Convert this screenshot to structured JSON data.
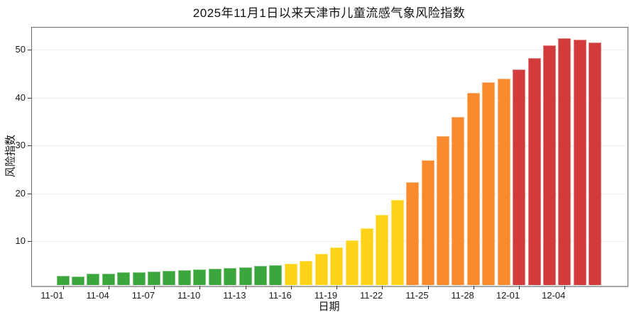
{
  "chart_data": {
    "type": "bar",
    "title": "2025年11月1日以来天津市儿童流感气象风险指数",
    "xlabel": "日期",
    "ylabel": "风险指数",
    "legend": "none",
    "grid": "horizontal-dotted",
    "background": "#ffffff",
    "ylim": [
      0.9,
      54.7
    ],
    "y_ticks": [
      10,
      20,
      30,
      40,
      50
    ],
    "x_ticks": [
      "11-01",
      "11-04",
      "11-07",
      "11-10",
      "11-13",
      "11-16",
      "11-19",
      "11-22",
      "11-25",
      "11-28",
      "12-01",
      "12-04"
    ],
    "categories": [
      "11-01",
      "11-02",
      "11-03",
      "11-04",
      "11-05",
      "11-06",
      "11-07",
      "11-08",
      "11-09",
      "11-10",
      "11-11",
      "11-12",
      "11-13",
      "11-14",
      "11-15",
      "11-16",
      "11-17",
      "11-18",
      "11-19",
      "11-20",
      "11-21",
      "11-22",
      "11-23",
      "11-24",
      "11-25",
      "11-26",
      "11-27",
      "11-28",
      "11-29",
      "11-30",
      "12-01",
      "12-02",
      "12-03",
      "12-04",
      "12-05",
      "12-06"
    ],
    "values": [
      2.8,
      2.7,
      3.2,
      3.3,
      3.5,
      3.5,
      3.7,
      3.9,
      4.0,
      4.2,
      4.3,
      4.4,
      4.6,
      4.9,
      5.1,
      5.4,
      5.9,
      7.4,
      8.7,
      10.2,
      12.8,
      15.5,
      18.6,
      22.3,
      26.9,
      31.9,
      35.9,
      40.9,
      43.2,
      43.9,
      45.9,
      48.2,
      50.8,
      52.4,
      52.0,
      51.5
    ],
    "bands": [
      "green",
      "green",
      "green",
      "green",
      "green",
      "green",
      "green",
      "green",
      "green",
      "green",
      "green",
      "green",
      "green",
      "green",
      "green",
      "yellow",
      "yellow",
      "yellow",
      "yellow",
      "yellow",
      "yellow",
      "yellow",
      "yellow",
      "orange",
      "orange",
      "orange",
      "orange",
      "orange",
      "orange",
      "orange",
      "red",
      "red",
      "red",
      "red",
      "red",
      "red"
    ],
    "colors": {
      "green": "#3BA63B",
      "yellow": "#FCD316",
      "orange": "#F98A2D",
      "red": "#D33B3B"
    }
  }
}
